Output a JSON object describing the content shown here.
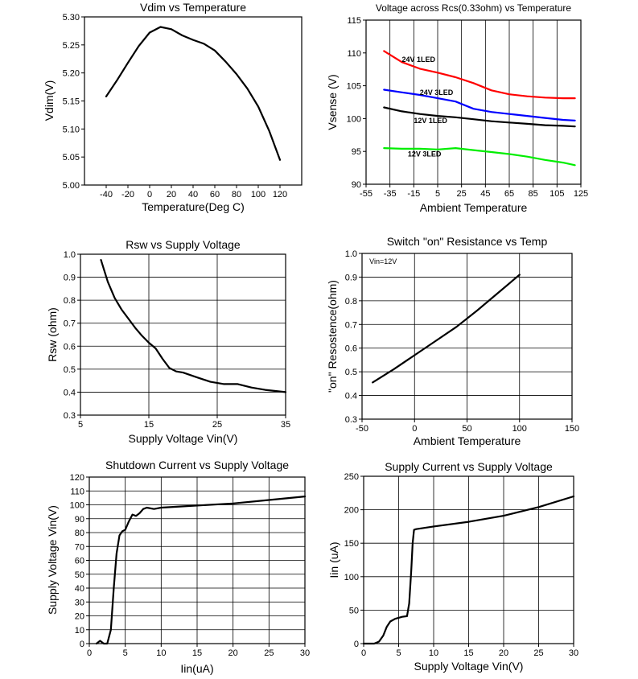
{
  "chart_data": [
    {
      "type": "line",
      "title": "Vdim vs Temperature",
      "xlabel": "Temperature(Deg C)",
      "ylabel": "Vdim(V)",
      "xlim": [
        -60,
        140
      ],
      "ylim": [
        5.0,
        5.3
      ],
      "grid": "none",
      "xticks": [
        -40,
        -20,
        0,
        20,
        40,
        60,
        80,
        100,
        120
      ],
      "xtick_labels": [
        "-40",
        "-20",
        "0",
        "20",
        "40",
        "60",
        "80",
        "100",
        "120"
      ],
      "yticks": [
        5.0,
        5.05,
        5.1,
        5.15,
        5.2,
        5.25,
        5.3
      ],
      "ytick_labels": [
        "5.00",
        "5.05",
        "5.10",
        "5.15",
        "5.20",
        "5.25",
        "5.30"
      ],
      "series": [
        {
          "name": "Vdim",
          "color": "#000000",
          "x": [
            -40,
            -30,
            -20,
            -10,
            0,
            10,
            20,
            30,
            40,
            50,
            60,
            70,
            80,
            90,
            100,
            110,
            120
          ],
          "y": [
            5.158,
            5.187,
            5.218,
            5.248,
            5.272,
            5.282,
            5.278,
            5.267,
            5.259,
            5.252,
            5.24,
            5.22,
            5.198,
            5.172,
            5.14,
            5.097,
            5.045
          ]
        }
      ],
      "annotations": []
    },
    {
      "type": "line",
      "title": "Voltage across Rcs(0.33ohm) vs Temperature",
      "xlabel": "Ambient Temperature",
      "ylabel": "Vsense (V)",
      "xlim": [
        -55,
        125
      ],
      "ylim": [
        90,
        115
      ],
      "grid": "vertical",
      "xticks": [
        -55,
        -35,
        -15,
        5,
        25,
        45,
        65,
        85,
        105,
        125
      ],
      "xtick_labels": [
        "-55",
        "-35",
        "-15",
        "5",
        "25",
        "45",
        "65",
        "85",
        "105",
        "125"
      ],
      "yticks": [
        90,
        95,
        100,
        105,
        110,
        115
      ],
      "ytick_labels": [
        "90",
        "95",
        "100",
        "105",
        "110",
        "115"
      ],
      "series": [
        {
          "name": "24V 1LED",
          "color": "#ff0000",
          "x": [
            -40,
            -25,
            -10,
            5,
            20,
            35,
            50,
            65,
            80,
            95,
            110,
            120
          ],
          "y": [
            110.3,
            108.6,
            107.6,
            107.0,
            106.3,
            105.4,
            104.3,
            103.7,
            103.4,
            103.2,
            103.1,
            103.1
          ]
        },
        {
          "name": "24V 3LED",
          "color": "#0000ff",
          "x": [
            -40,
            -25,
            -10,
            5,
            20,
            35,
            50,
            65,
            80,
            95,
            110,
            120
          ],
          "y": [
            104.4,
            104.0,
            103.6,
            103.1,
            102.6,
            101.5,
            101.0,
            100.7,
            100.4,
            100.1,
            99.8,
            99.7
          ]
        },
        {
          "name": "12V 1LED",
          "color": "#000000",
          "x": [
            -40,
            -25,
            -10,
            5,
            20,
            35,
            50,
            65,
            80,
            95,
            110,
            120
          ],
          "y": [
            101.7,
            101.1,
            100.7,
            100.4,
            100.2,
            99.9,
            99.6,
            99.4,
            99.2,
            99.0,
            98.9,
            98.8
          ]
        },
        {
          "name": "12V 3LED",
          "color": "#00ee00",
          "x": [
            -40,
            -25,
            -10,
            5,
            20,
            35,
            50,
            65,
            80,
            95,
            110,
            120
          ],
          "y": [
            95.5,
            95.4,
            95.4,
            95.3,
            95.5,
            95.2,
            94.9,
            94.6,
            94.2,
            93.7,
            93.3,
            92.9
          ]
        }
      ],
      "annotations": [
        {
          "text": "24V  1LED",
          "x": -25,
          "y": 108.6
        },
        {
          "text": "24V  3LED",
          "x": -10,
          "y": 103.6
        },
        {
          "text": "12V  1LED",
          "x": -15,
          "y": 99.3
        },
        {
          "text": "12V  3LED",
          "x": -20,
          "y": 94.2
        }
      ]
    },
    {
      "type": "line",
      "title": "Rsw vs Supply Voltage",
      "xlabel": "Supply Voltage Vin(V)",
      "ylabel": "Rsw (ohm)",
      "xlim": [
        5,
        35
      ],
      "ylim": [
        0.3,
        1.0
      ],
      "grid": "both",
      "xticks": [
        5,
        15,
        25,
        35
      ],
      "xtick_labels": [
        "5",
        "15",
        "25",
        "35"
      ],
      "yticks": [
        0.3,
        0.4,
        0.5,
        0.6,
        0.7,
        0.8,
        0.9,
        1.0
      ],
      "ytick_labels": [
        "0.3",
        "0.4",
        "0.5",
        "0.6",
        "0.7",
        "0.8",
        "0.9",
        "1.0"
      ],
      "series": [
        {
          "name": "Rsw",
          "color": "#000000",
          "x": [
            8,
            9,
            10,
            11,
            12,
            13,
            14,
            15,
            16,
            17,
            18,
            19,
            20,
            22,
            24,
            26,
            28,
            30,
            32,
            35
          ],
          "y": [
            0.975,
            0.88,
            0.81,
            0.76,
            0.72,
            0.68,
            0.645,
            0.615,
            0.59,
            0.545,
            0.505,
            0.49,
            0.485,
            0.465,
            0.445,
            0.435,
            0.435,
            0.42,
            0.41,
            0.4
          ]
        }
      ],
      "annotations": []
    },
    {
      "type": "line",
      "title": "Switch \"on\" Resistance vs Temp",
      "xlabel": "Ambient Temperature",
      "ylabel": "\"on\" Resostence(ohm)",
      "xlim": [
        -50,
        150
      ],
      "ylim": [
        0.3,
        1.0
      ],
      "grid": "both",
      "xticks": [
        -50,
        0,
        50,
        100,
        150
      ],
      "xtick_labels": [
        "-50",
        "0",
        "50",
        "100",
        "150"
      ],
      "yticks": [
        0.3,
        0.4,
        0.5,
        0.6,
        0.7,
        0.8,
        0.9,
        1.0
      ],
      "ytick_labels": [
        "0.3",
        "0.4",
        "0.5",
        "0.6",
        "0.7",
        "0.8",
        "0.9",
        "1.0"
      ],
      "series": [
        {
          "name": "Ron",
          "color": "#000000",
          "x": [
            -40,
            -20,
            0,
            20,
            40,
            60,
            80,
            100
          ],
          "y": [
            0.455,
            0.51,
            0.57,
            0.63,
            0.69,
            0.76,
            0.835,
            0.91
          ]
        }
      ],
      "annotations": [
        {
          "text": "Vin=12V",
          "x": -43,
          "y": 0.955
        }
      ]
    },
    {
      "type": "line",
      "title": "Shutdown Current vs Supply Voltage",
      "xlabel": "Iin(uA)",
      "ylabel": "Supply Voltage Vin(V)",
      "xlim": [
        0,
        30
      ],
      "ylim": [
        0,
        120
      ],
      "grid": "both",
      "xticks": [
        0,
        5,
        10,
        15,
        20,
        25,
        30
      ],
      "xtick_labels": [
        "0",
        "5",
        "10",
        "15",
        "20",
        "25",
        "30"
      ],
      "yticks": [
        0,
        10,
        20,
        30,
        40,
        50,
        60,
        70,
        80,
        90,
        100,
        110,
        120
      ],
      "ytick_labels": [
        "0",
        "10",
        "20",
        "30",
        "40",
        "50",
        "60",
        "70",
        "80",
        "90",
        "100",
        "110",
        "120"
      ],
      "series": [
        {
          "name": "Shutdown",
          "color": "#000000",
          "x": [
            1.0,
            1.5,
            2.0,
            2.5,
            3.0,
            3.4,
            3.8,
            4.2,
            4.6,
            5.0,
            5.5,
            6.0,
            6.5,
            7.0,
            7.5,
            8.0,
            9.0,
            10,
            15,
            20,
            25,
            30
          ],
          "y": [
            0,
            2,
            0,
            0,
            10,
            40,
            65,
            78,
            81,
            82,
            88,
            93,
            92,
            94,
            97,
            98,
            97,
            98,
            99.5,
            101,
            103.5,
            106
          ]
        }
      ],
      "annotations": []
    },
    {
      "type": "line",
      "title": "Supply Current vs Supply Voltage",
      "xlabel": "Supply Voltage Vin(V)",
      "ylabel": "Iin (uA)",
      "xlim": [
        0,
        30
      ],
      "ylim": [
        0,
        250
      ],
      "grid": "both",
      "xticks": [
        0,
        5,
        10,
        15,
        20,
        25,
        30
      ],
      "xtick_labels": [
        "0",
        "5",
        "10",
        "15",
        "20",
        "25",
        "30"
      ],
      "yticks": [
        0,
        50,
        100,
        150,
        200,
        250
      ],
      "ytick_labels": [
        "0",
        "50",
        "100",
        "150",
        "200",
        "250"
      ],
      "series": [
        {
          "name": "Iin",
          "color": "#000000",
          "x": [
            0,
            1.5,
            2.2,
            2.8,
            3.3,
            3.8,
            4.5,
            5.5,
            6.2,
            6.5,
            6.8,
            7.0,
            7.2,
            7.5,
            10,
            15,
            20,
            25,
            30
          ],
          "y": [
            0,
            0,
            3,
            12,
            25,
            33,
            37,
            40,
            41,
            60,
            110,
            150,
            170,
            171,
            175,
            182,
            191,
            204,
            220
          ]
        }
      ],
      "annotations": []
    }
  ]
}
